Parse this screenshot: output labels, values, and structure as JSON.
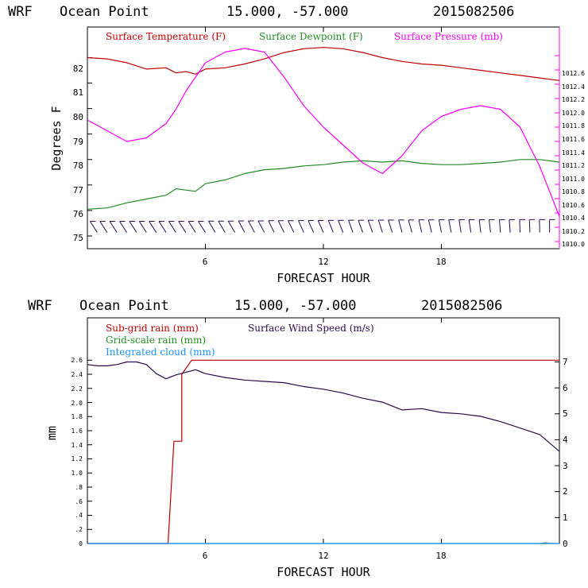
{
  "chart_data": [
    {
      "type": "line",
      "header": {
        "model": "WRF",
        "location": "Ocean Point",
        "coords": "15.000, -57.000",
        "run": "2015082506"
      },
      "xlabel": "FORECAST HOUR",
      "ylabel": "Degrees F",
      "xlim": [
        0,
        24
      ],
      "x_ticks": [
        "6",
        "12",
        "18"
      ],
      "ylim": [
        74.5,
        83.2
      ],
      "y_ticks": [
        "75",
        "76",
        "77",
        "78",
        "79",
        "80",
        "81",
        "82"
      ],
      "y2lim": [
        1009.9,
        1013.0
      ],
      "y2_ticks": [
        "1010.0",
        "1010.2",
        "1010.4",
        "1010.6",
        "1010.8",
        "1011.0",
        "1011.2",
        "1011.4",
        "1011.6",
        "1011.8",
        "1012.0",
        "1012.2",
        "1012.4",
        "1012.6"
      ],
      "legend_placement": "top",
      "series": [
        {
          "name": "Surface Temperature (F)",
          "color": "#c00000",
          "axis": "left",
          "x": [
            0,
            1,
            2,
            3,
            4,
            4.5,
            5,
            5.5,
            6,
            7,
            8,
            9,
            10,
            11,
            12,
            13,
            14,
            15,
            16,
            17,
            18,
            19,
            20,
            21,
            22,
            23,
            24
          ],
          "values": [
            82.0,
            81.95,
            81.8,
            81.55,
            81.6,
            81.4,
            81.45,
            81.35,
            81.55,
            81.6,
            81.75,
            81.95,
            82.2,
            82.35,
            82.4,
            82.35,
            82.2,
            82.0,
            81.85,
            81.75,
            81.7,
            81.6,
            81.5,
            81.4,
            81.3,
            81.2,
            81.1
          ]
        },
        {
          "name": "Surface Dewpoint (F)",
          "color": "#228b22",
          "axis": "left",
          "x": [
            0,
            1,
            2,
            3,
            4,
            4.5,
            5,
            5.5,
            6,
            7,
            8,
            9,
            10,
            11,
            12,
            13,
            14,
            15,
            16,
            17,
            18,
            19,
            20,
            21,
            22,
            23,
            24
          ],
          "values": [
            76.05,
            76.1,
            76.3,
            76.45,
            76.6,
            76.85,
            76.8,
            76.75,
            77.05,
            77.2,
            77.45,
            77.6,
            77.65,
            77.75,
            77.8,
            77.9,
            77.95,
            77.9,
            77.95,
            77.85,
            77.8,
            77.8,
            77.85,
            77.9,
            78.0,
            78.0,
            77.9
          ]
        },
        {
          "name": "Surface Pressure (mb)",
          "color": "#ff00ff",
          "axis": "right",
          "x": [
            0,
            1,
            2,
            3,
            4,
            4.5,
            5,
            5.5,
            6,
            7,
            8,
            9,
            10,
            11,
            12,
            13,
            14,
            15,
            16,
            17,
            18,
            19,
            20,
            21,
            22,
            23,
            24
          ],
          "values": [
            1011.7,
            1011.55,
            1011.4,
            1011.45,
            1011.65,
            1011.85,
            1012.1,
            1012.3,
            1012.5,
            1012.65,
            1012.7,
            1012.65,
            1012.3,
            1011.9,
            1011.6,
            1011.35,
            1011.1,
            1010.95,
            1011.2,
            1011.55,
            1011.75,
            1011.85,
            1011.9,
            1011.85,
            1011.6,
            1011.05,
            1010.35
          ]
        }
      ],
      "wind_barbs": {
        "color": "#2a0a4a",
        "level": 75.2,
        "x": [
          0.5,
          1,
          1.5,
          2,
          2.5,
          3,
          3.5,
          4,
          4.5,
          5,
          5.5,
          6,
          6.5,
          7,
          7.5,
          8,
          8.5,
          9,
          9.5,
          10,
          10.5,
          11,
          11.5,
          12,
          12.5,
          13,
          13.5,
          14,
          14.5,
          15,
          15.5,
          16,
          16.5,
          17,
          17.5,
          18,
          18.5,
          19,
          19.5,
          20,
          20.5,
          21,
          21.5,
          22,
          22.5,
          23,
          23.5
        ],
        "direction_deg": [
          60,
          60,
          60,
          60,
          60,
          60,
          60,
          60,
          60,
          60,
          60,
          60,
          62,
          62,
          62,
          64,
          64,
          64,
          66,
          66,
          66,
          68,
          68,
          68,
          70,
          70,
          72,
          72,
          72,
          74,
          74,
          76,
          76,
          78,
          78,
          80,
          80,
          82,
          82,
          84,
          84,
          86,
          86,
          88,
          88,
          89,
          90
        ]
      }
    },
    {
      "type": "line",
      "header": {
        "model": "WRF",
        "location": "Ocean Point",
        "coords": "15.000, -57.000",
        "run": "2015082506"
      },
      "xlabel": "FORECAST HOUR",
      "ylabel": "mm",
      "xlim": [
        0,
        24
      ],
      "x_ticks": [
        "6",
        "12",
        "18"
      ],
      "ylim": [
        0,
        3.2
      ],
      "y_ticks": [
        "0",
        ".2",
        ".4",
        ".6",
        ".8",
        "1.0",
        "1.2",
        "1.4",
        "1.6",
        "1.8",
        "2.0",
        "2.2",
        "2.4",
        "2.6"
      ],
      "y2lim": [
        0,
        8.7
      ],
      "y2_ticks": [
        "0",
        "1",
        "2",
        "3",
        "4",
        "5",
        "6",
        "7"
      ],
      "legend_placement": "top-left",
      "series": [
        {
          "name": "Sub-grid rain (mm)",
          "color": "#c00000",
          "axis": "left",
          "x": [
            0,
            4.1,
            4.4,
            4.4,
            4.8,
            4.8,
            5.3,
            24
          ],
          "values": [
            0,
            0,
            1.45,
            1.45,
            1.45,
            2.4,
            2.6,
            2.6
          ]
        },
        {
          "name": "Grid-scale rain (mm)",
          "color": "#228b22",
          "axis": "left",
          "x": [
            0,
            24
          ],
          "values": [
            0,
            0
          ]
        },
        {
          "name": "Integrated cloud (mm)",
          "color": "#1e90ff",
          "axis": "left",
          "x": [
            0,
            23,
            23.3,
            23.6,
            24
          ],
          "values": [
            0,
            0,
            0.01,
            0,
            0
          ]
        },
        {
          "name": "Surface Wind Speed (m/s)",
          "color": "#2a0a4a",
          "axis": "right",
          "x": [
            0,
            0.5,
            1,
            1.5,
            2,
            2.5,
            3,
            3.5,
            4,
            4.5,
            5,
            5.5,
            6,
            7,
            8,
            9,
            10,
            11,
            12,
            13,
            14,
            15,
            16,
            17,
            18,
            19,
            20,
            21,
            22,
            23,
            24
          ],
          "values": [
            6.9,
            6.85,
            6.85,
            6.9,
            7.0,
            7.0,
            6.9,
            6.55,
            6.35,
            6.5,
            6.6,
            6.7,
            6.55,
            6.4,
            6.3,
            6.25,
            6.2,
            6.05,
            5.95,
            5.8,
            5.6,
            5.45,
            5.15,
            5.2,
            5.05,
            5.0,
            4.9,
            4.7,
            4.45,
            4.2,
            3.55
          ]
        }
      ]
    }
  ]
}
